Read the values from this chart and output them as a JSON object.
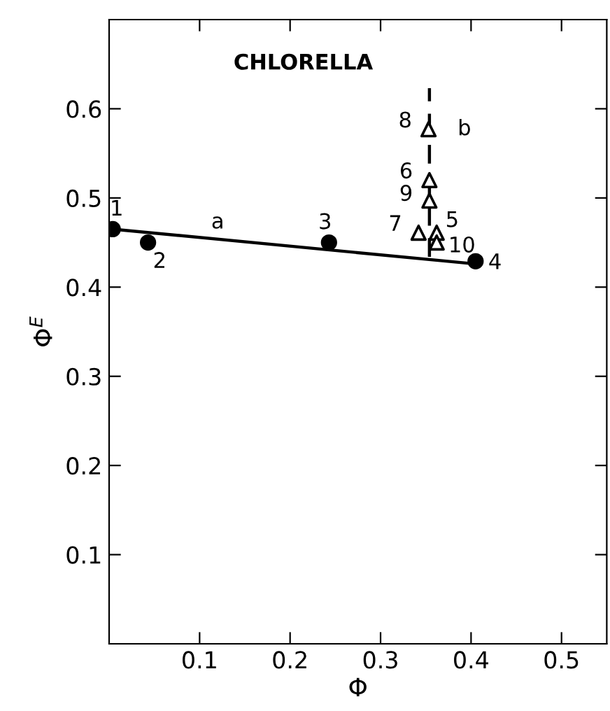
{
  "chart_data": {
    "type": "scatter",
    "xlabel": "Φ",
    "ylabel": "Φ$^{E}$",
    "xlim": [
      0,
      0.55
    ],
    "ylim": [
      0,
      0.7
    ],
    "xticks": [
      0.1,
      0.2,
      0.3,
      0.4,
      0.5
    ],
    "yticks": [
      0.1,
      0.2,
      0.3,
      0.4,
      0.5,
      0.6
    ],
    "grid": false,
    "legend": false,
    "series": [
      {
        "color": "#000000",
        "marker": "circle",
        "x": [
          0.004,
          0.043,
          0.243,
          0.405
        ],
        "values": [
          0.465,
          0.45,
          0.45,
          0.429
        ]
      },
      {
        "type": "line",
        "color": "#000000",
        "line_style": "solid",
        "x": [
          0.004,
          0.405
        ],
        "values": [
          0.465,
          0.426
        ]
      },
      {
        "color": "#000000",
        "marker": "triangle",
        "x": [
          0.362,
          0.354,
          0.342,
          0.353,
          0.354,
          0.362
        ],
        "values": [
          0.461,
          0.52,
          0.461,
          0.577,
          0.497,
          0.45
        ]
      },
      {
        "type": "line",
        "color": "#000000",
        "line_style": "dashed",
        "x": [
          0.354,
          0.354
        ],
        "values": [
          0.434,
          0.623
        ]
      }
    ],
    "annotations": [
      "CHLORELLA",
      {
        "text": "1",
        "x": 0.004,
        "y": 0.465
      },
      {
        "text": "2",
        "x": 0.043,
        "y": 0.45
      },
      {
        "text": "3",
        "x": 0.243,
        "y": 0.45
      },
      {
        "text": "4",
        "x": 0.405,
        "y": 0.429
      },
      {
        "text": "5",
        "x": 0.362,
        "y": 0.461
      },
      {
        "text": "6",
        "x": 0.354,
        "y": 0.52
      },
      {
        "text": "7",
        "x": 0.342,
        "y": 0.461
      },
      {
        "text": "8",
        "x": 0.353,
        "y": 0.577
      },
      {
        "text": "9",
        "x": 0.354,
        "y": 0.497
      },
      {
        "text": "10",
        "x": 0.362,
        "y": 0.45
      },
      {
        "text": "a",
        "x": 0.12,
        "y": 0.455
      },
      {
        "text": "b",
        "x": 0.354,
        "y": 0.577
      }
    ]
  }
}
